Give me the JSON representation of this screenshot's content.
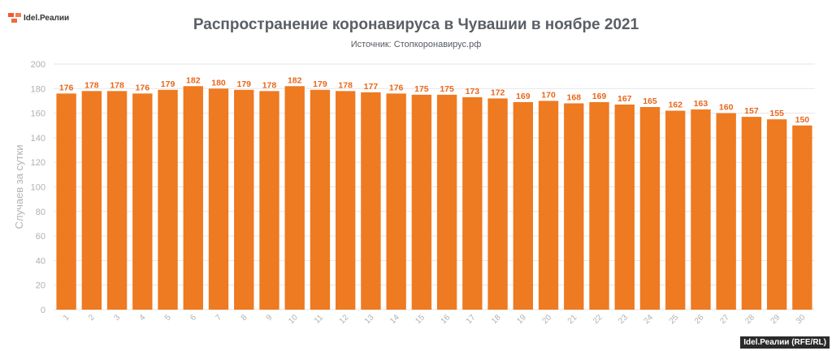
{
  "logo": {
    "text": "Idel.Реалии",
    "icon": "rfe-flame-icon",
    "color": "#ef5a2a"
  },
  "credit": "Idel.Реалии (RFE/RL)",
  "colors": {
    "bar": "#ee7a21",
    "label": "#e8671c",
    "grid": "#e6e6e6",
    "axis_text": "#b0b0b0",
    "ylabel": "#b3b3b3"
  },
  "chart_data": {
    "type": "bar",
    "title": "Распространение коронавируса в Чувашии в ноябре 2021",
    "subtitle": "Источник: Стопкоронавирус.рф",
    "xlabel": "",
    "ylabel": "Случаев за сутки",
    "ylim": [
      0,
      200
    ],
    "yticks": [
      0,
      20,
      40,
      60,
      80,
      100,
      120,
      140,
      160,
      180,
      200
    ],
    "grid": true,
    "categories": [
      "1",
      "2",
      "3",
      "4",
      "5",
      "6",
      "7",
      "8",
      "9",
      "10",
      "11",
      "12",
      "13",
      "14",
      "15",
      "16",
      "17",
      "18",
      "19",
      "20",
      "21",
      "22",
      "23",
      "24",
      "25",
      "26",
      "27",
      "28",
      "29",
      "30"
    ],
    "values": [
      176,
      178,
      178,
      176,
      179,
      182,
      180,
      179,
      178,
      182,
      179,
      178,
      177,
      176,
      175,
      175,
      173,
      172,
      169,
      170,
      168,
      169,
      167,
      165,
      162,
      163,
      160,
      157,
      155,
      150
    ]
  }
}
